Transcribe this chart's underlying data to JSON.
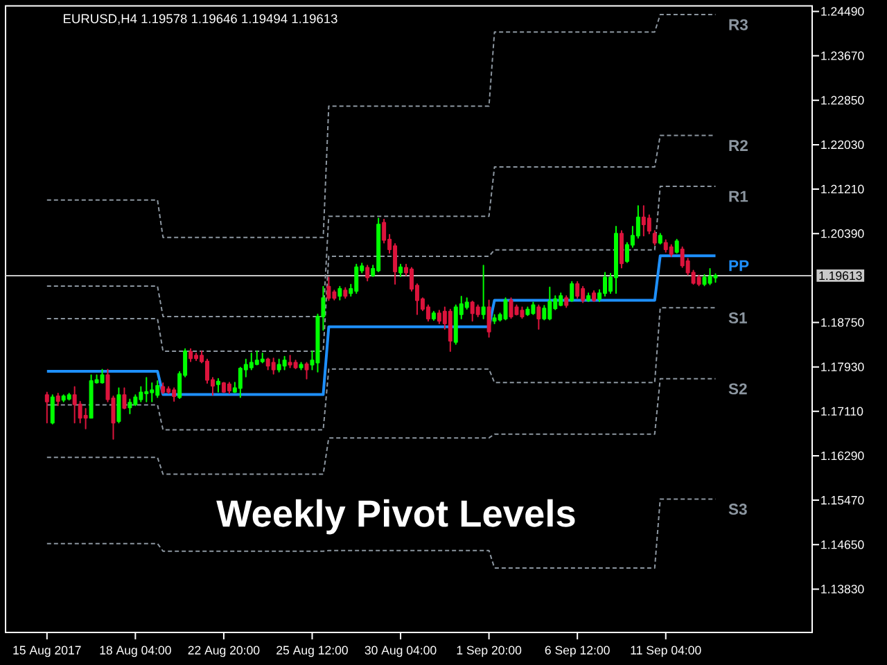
{
  "chart_data": {
    "type": "candlestick",
    "title": "EURUSD,H4 1.19578 1.19646 1.19494 1.19613",
    "annotations": [
      "Weekly Pivot Levels"
    ],
    "categories": [
      null,
      null,
      null,
      null,
      null,
      null,
      null,
      "15 Aug 2017",
      null,
      null,
      null,
      null,
      null,
      null,
      null,
      null,
      null,
      null,
      null,
      null,
      null,
      null,
      null,
      "18 Aug 04:00",
      null,
      null,
      null,
      null,
      null,
      null,
      null,
      null,
      null,
      null,
      null,
      null,
      null,
      null,
      null,
      "22 Aug 20:00",
      null,
      null,
      null,
      null,
      null,
      null,
      null,
      null,
      null,
      null,
      null,
      null,
      null,
      null,
      null,
      "25 Aug 12:00",
      null,
      null,
      null,
      null,
      null,
      null,
      null,
      null,
      null,
      null,
      null,
      null,
      null,
      null,
      null,
      "30 Aug 04:00",
      null,
      null,
      null,
      null,
      null,
      null,
      null,
      null,
      null,
      null,
      null,
      null,
      null,
      null,
      null,
      "1 Sep 20:00",
      null,
      null,
      null,
      null,
      null,
      null,
      null,
      null,
      null,
      null,
      null,
      null,
      null,
      null,
      null,
      "6 Sep 12:00",
      null,
      null,
      null,
      null,
      null,
      null,
      null,
      null,
      null,
      null,
      null,
      null,
      null,
      null,
      null,
      "11 Sep 04:00",
      null,
      null,
      null,
      null,
      null,
      null,
      null,
      null,
      null,
      null,
      null,
      null,
      null,
      null,
      null,
      null,
      null,
      null,
      null,
      null,
      null,
      null,
      null,
      null,
      null,
      null
    ],
    "ohlc": [
      null,
      null,
      null,
      null,
      null,
      null,
      null,
      [
        1.1741,
        1.1746,
        1.169,
        1.1729
      ],
      [
        1.169,
        1.1741,
        1.1688,
        1.1737
      ],
      [
        1.1739,
        1.1744,
        1.1722,
        1.173
      ],
      [
        1.1732,
        1.1741,
        1.1729,
        1.1739
      ],
      [
        1.1734,
        1.1744,
        1.1732,
        1.1741
      ],
      [
        1.1741,
        1.1756,
        1.169,
        1.1724
      ],
      [
        1.1724,
        1.1729,
        1.169,
        1.1699
      ],
      [
        1.1703,
        1.1716,
        1.1679,
        1.1699
      ],
      [
        1.1699,
        1.1778,
        1.1699,
        1.1767
      ],
      [
        1.1764,
        1.1778,
        1.1763,
        1.1769
      ],
      [
        1.1764,
        1.1788,
        1.1763,
        1.1778
      ],
      [
        1.1778,
        1.1788,
        1.1729,
        1.1733
      ],
      [
        1.1735,
        1.1739,
        1.166,
        1.169
      ],
      [
        1.1693,
        1.1754,
        1.169,
        1.1741
      ],
      [
        1.1741,
        1.1754,
        1.1716,
        1.1717
      ],
      [
        1.1718,
        1.1733,
        1.1707,
        1.1727
      ],
      [
        1.1724,
        1.1741,
        1.1722,
        1.1737
      ],
      [
        1.1733,
        1.1756,
        1.1729,
        1.1746
      ],
      [
        1.1744,
        1.1773,
        1.1729,
        1.1747
      ],
      [
        1.1746,
        1.1763,
        1.1729,
        1.175
      ],
      [
        1.1741,
        1.1767,
        1.1737,
        1.1758
      ],
      [
        1.1756,
        1.1763,
        1.1744,
        1.1747
      ],
      [
        1.1752,
        1.1756,
        1.1744,
        1.1747
      ],
      [
        1.175,
        1.1754,
        1.173,
        1.1739
      ],
      [
        1.1737,
        1.1784,
        1.1735,
        1.178
      ],
      [
        1.1778,
        1.1826,
        1.1775,
        1.1822
      ],
      [
        1.1821,
        1.1826,
        1.1803,
        1.1809
      ],
      [
        1.1814,
        1.1818,
        1.1805,
        1.1809
      ],
      [
        1.1814,
        1.1822,
        1.1801,
        1.1803
      ],
      [
        1.1803,
        1.1807,
        1.1763,
        1.1769
      ],
      [
        1.1769,
        1.1773,
        1.1741,
        1.1758
      ],
      [
        1.1761,
        1.1771,
        1.1747,
        1.1766
      ],
      [
        1.1763,
        1.1764,
        1.1746,
        1.1747
      ],
      [
        1.1761,
        1.1764,
        1.1744,
        1.1749
      ],
      [
        1.1747,
        1.1764,
        1.1746,
        1.1754
      ],
      [
        1.1754,
        1.1792,
        1.1737,
        1.179
      ],
      [
        1.1788,
        1.1807,
        1.1775,
        1.1797
      ],
      [
        1.1792,
        1.1818,
        1.1788,
        1.1801
      ],
      [
        1.1798,
        1.1822,
        1.1797,
        1.1805
      ],
      [
        1.1803,
        1.1818,
        1.1801,
        1.1807
      ],
      [
        1.1807,
        1.1809,
        1.1788,
        1.1795
      ],
      [
        1.1801,
        1.1809,
        1.178,
        1.1788
      ],
      [
        1.1788,
        1.1807,
        1.1784,
        1.1797
      ],
      [
        1.1795,
        1.1812,
        1.1788,
        1.1805
      ],
      [
        1.1801,
        1.1814,
        1.1792,
        1.1797
      ],
      [
        1.1801,
        1.1805,
        1.179,
        1.1792
      ],
      [
        1.1792,
        1.1801,
        1.1788,
        1.1797
      ],
      [
        1.1798,
        1.1801,
        1.1771,
        1.1788
      ],
      [
        1.1797,
        1.1822,
        1.1788,
        1.1805
      ],
      [
        1.1801,
        1.189,
        1.1784,
        1.1886
      ],
      [
        1.1886,
        1.1941,
        1.1861,
        1.192
      ],
      [
        1.1941,
        1.1958,
        1.1916,
        1.192
      ],
      [
        1.1931,
        1.1934,
        1.1917,
        1.192
      ],
      [
        1.1924,
        1.1941,
        1.1917,
        1.1937
      ],
      [
        1.1934,
        1.1939,
        1.192,
        1.1924
      ],
      [
        1.1929,
        1.1945,
        1.1924,
        1.1937
      ],
      [
        1.1933,
        1.1982,
        1.1929,
        1.1977
      ],
      [
        1.1971,
        1.1984,
        1.1967,
        1.1979
      ],
      [
        1.1976,
        1.198,
        1.1952,
        1.1958
      ],
      [
        1.1962,
        1.198,
        1.196,
        1.1974
      ],
      [
        1.1971,
        1.2067,
        1.1969,
        1.2056
      ],
      [
        1.2059,
        1.2065,
        1.2022,
        1.2027
      ],
      [
        1.2028,
        1.2037,
        1.2003,
        1.201
      ],
      [
        1.2016,
        1.202,
        1.1946,
        1.1969
      ],
      [
        1.1967,
        1.1982,
        1.196,
        1.1977
      ],
      [
        1.1976,
        1.1982,
        1.1962,
        1.1967
      ],
      [
        1.1973,
        1.1976,
        1.1933,
        1.1937
      ],
      [
        1.1943,
        1.1946,
        1.189,
        1.1916
      ],
      [
        1.1918,
        1.192,
        1.1897,
        1.19
      ],
      [
        1.1903,
        1.1907,
        1.1878,
        1.1882
      ],
      [
        1.1882,
        1.1895,
        1.1879,
        1.1892
      ],
      [
        1.1892,
        1.1897,
        1.1873,
        1.1878
      ],
      [
        1.1895,
        1.1903,
        1.1863,
        1.1873
      ],
      [
        1.1895,
        1.1899,
        1.1822,
        1.1841
      ],
      [
        1.1839,
        1.1907,
        1.1835,
        1.1903
      ],
      [
        1.189,
        1.1923,
        1.1882,
        1.1909
      ],
      [
        1.1903,
        1.192,
        1.19,
        1.1912
      ],
      [
        1.1912,
        1.1914,
        1.1878,
        1.1892
      ],
      [
        1.1903,
        1.1907,
        1.1886,
        1.189
      ],
      [
        1.189,
        1.198,
        1.1882,
        1.1903
      ],
      [
        1.1903,
        1.1916,
        1.1848,
        1.1858
      ],
      [
        1.1878,
        1.1889,
        1.1873,
        1.1883
      ],
      [
        1.188,
        1.1892,
        1.1878,
        1.1889
      ],
      [
        1.1882,
        1.192,
        1.188,
        1.1916
      ],
      [
        1.1916,
        1.192,
        1.1883,
        1.1886
      ],
      [
        1.1903,
        1.1907,
        1.1889,
        1.189
      ],
      [
        1.1897,
        1.1903,
        1.1883,
        1.1886
      ],
      [
        1.189,
        1.1903,
        1.1888,
        1.1899
      ],
      [
        1.1892,
        1.1912,
        1.189,
        1.1907
      ],
      [
        1.1903,
        1.1907,
        1.1863,
        1.1882
      ],
      [
        1.1882,
        1.1906,
        1.188,
        1.1901
      ],
      [
        1.1882,
        1.194,
        1.188,
        1.1914
      ],
      [
        1.1901,
        1.1924,
        1.1899,
        1.1918
      ],
      [
        1.1907,
        1.1929,
        1.1906,
        1.1924
      ],
      [
        1.192,
        1.1924,
        1.1903,
        1.1907
      ],
      [
        1.1916,
        1.195,
        1.1914,
        1.1946
      ],
      [
        1.1946,
        1.195,
        1.192,
        1.1924
      ],
      [
        1.1937,
        1.1941,
        1.1912,
        1.1916
      ],
      [
        1.1916,
        1.1929,
        1.1914,
        1.1924
      ],
      [
        1.1929,
        1.1933,
        1.1914,
        1.1916
      ],
      [
        1.1918,
        1.1935,
        1.1914,
        1.1929
      ],
      [
        1.1929,
        1.1967,
        1.1924,
        1.1958
      ],
      [
        1.1933,
        1.1965,
        1.1929,
        1.1958
      ],
      [
        1.1958,
        1.2052,
        1.1929,
        1.2039
      ],
      [
        1.2039,
        1.2044,
        1.1976,
        1.1984
      ],
      [
        1.1988,
        1.2022,
        1.1986,
        1.2018
      ],
      [
        1.2018,
        1.2052,
        1.2014,
        1.2035
      ],
      [
        1.2035,
        1.209,
        1.2031,
        1.2069
      ],
      [
        1.2069,
        1.209,
        1.2035,
        1.2056
      ],
      [
        1.2067,
        1.2073,
        1.2039,
        1.2044
      ],
      [
        1.2039,
        1.2044,
        1.2018,
        1.2022
      ],
      [
        1.2022,
        1.2039,
        1.202,
        1.2035
      ],
      [
        1.2022,
        1.2027,
        1.2005,
        1.201
      ],
      [
        1.2014,
        1.2018,
        1.1997,
        1.2001
      ],
      [
        1.2005,
        1.2028,
        1.2003,
        1.2025
      ],
      [
        1.201,
        1.2014,
        1.1977,
        1.198
      ],
      [
        1.1988,
        1.1993,
        1.1963,
        1.1967
      ],
      [
        1.1967,
        1.1971,
        1.1946,
        1.1948
      ],
      [
        1.1958,
        1.1962,
        1.1943,
        1.1946
      ],
      [
        1.1946,
        1.1963,
        1.1943,
        1.1958
      ],
      [
        1.1948,
        1.1974,
        1.1945,
        1.196
      ],
      [
        1.19578,
        1.19646,
        1.19494,
        1.19613
      ],
      null,
      null,
      null,
      null,
      null,
      null,
      null,
      null,
      null,
      null,
      null,
      null,
      null,
      null,
      null,
      null,
      null
    ],
    "colors": [
      null,
      null,
      null,
      null,
      null,
      null,
      null,
      "#dc143c",
      "#00ff00",
      "#dc143c",
      "#00ff00",
      "#00ff00",
      "#dc143c",
      "#dc143c",
      "#dc143c",
      "#00ff00",
      "#00ff00",
      "#00ff00",
      "#dc143c",
      "#dc143c",
      "#00ff00",
      "#dc143c",
      "#00ff00",
      "#00ff00",
      "#00ff00",
      "#00ff00",
      "#00ff00",
      "#00ff00",
      "#dc143c",
      "#dc143c",
      "#dc143c",
      "#00ff00",
      "#00ff00",
      "#dc143c",
      "#dc143c",
      "#dc143c",
      "#dc143c",
      "#dc143c",
      "#00ff00",
      "#dc143c",
      "#dc143c",
      "#00ff00",
      "#00ff00",
      "#00ff00",
      "#00ff00",
      "#00ff00",
      "#00ff00",
      "#dc143c",
      "#dc143c",
      "#00ff00",
      "#00ff00",
      "#dc143c",
      "#dc143c",
      "#00ff00",
      "#dc143c",
      "#00ff00",
      "#00ff00",
      "#00ff00",
      "#dc143c",
      "#dc143c",
      "#00ff00",
      "#dc143c",
      "#00ff00",
      "#00ff00",
      "#00ff00",
      "#dc143c",
      "#00ff00",
      "#00ff00",
      "#dc143c",
      "#dc143c",
      "#dc143c",
      "#00ff00",
      "#dc143c",
      "#dc143c",
      "#dc143c",
      "#dc143c",
      "#dc143c",
      "#00ff00",
      "#dc143c",
      "#dc143c",
      "#dc143c",
      "#00ff00",
      "#00ff00",
      "#00ff00",
      "#dc143c",
      "#dc143c",
      "#00ff00",
      "#dc143c",
      "#00ff00",
      "#00ff00",
      "#00ff00",
      "#dc143c",
      "#dc143c",
      "#dc143c",
      "#00ff00",
      "#00ff00",
      "#dc143c",
      "#00ff00",
      "#00ff00",
      "#00ff00",
      "#00ff00",
      "#dc143c",
      "#00ff00",
      "#dc143c",
      "#dc143c",
      "#00ff00",
      "#dc143c",
      "#00ff00",
      "#00ff00",
      "#00ff00",
      "#00ff00",
      "#dc143c",
      "#00ff00",
      "#00ff00",
      "#00ff00",
      "#dc143c",
      "#dc143c",
      "#dc143c",
      "#00ff00",
      "#dc143c",
      "#dc143c",
      "#00ff00",
      "#dc143c",
      "#dc143c",
      "#dc143c",
      "#dc143c",
      "#00ff00",
      "#00ff00",
      "#00ff00",
      null,
      null,
      null,
      null,
      null,
      null,
      null,
      null,
      null,
      null,
      null,
      null,
      null,
      null,
      null,
      null,
      null
    ],
    "series": [
      {
        "type": "line",
        "name": "R3",
        "color": "#8c96a0",
        "line_style": "dashed",
        "values": [
          null,
          null,
          null,
          null,
          null,
          null,
          null,
          1.2101,
          1.2101,
          1.2101,
          1.2101,
          1.2101,
          1.2101,
          1.2101,
          1.2101,
          1.2101,
          1.2101,
          1.2101,
          1.2101,
          1.2101,
          1.2101,
          1.2101,
          1.2101,
          1.2101,
          1.2101,
          1.2101,
          1.2101,
          1.2101,
          1.2032,
          1.2032,
          1.2032,
          1.2032,
          1.2032,
          1.2032,
          1.2032,
          1.2032,
          1.2032,
          1.2032,
          1.2032,
          1.2032,
          1.2032,
          1.2032,
          1.2032,
          1.2032,
          1.2032,
          1.2032,
          1.2032,
          1.2032,
          1.2032,
          1.2032,
          1.2032,
          1.2032,
          1.2032,
          1.2032,
          1.2032,
          1.2032,
          1.2032,
          1.2032,
          1.2274,
          1.2274,
          1.2274,
          1.2274,
          1.2274,
          1.2274,
          1.2274,
          1.2274,
          1.2274,
          1.2274,
          1.2274,
          1.2274,
          1.2274,
          1.2274,
          1.2274,
          1.2274,
          1.2274,
          1.2274,
          1.2274,
          1.2274,
          1.2274,
          1.2274,
          1.2274,
          1.2274,
          1.2274,
          1.2274,
          1.2274,
          1.2274,
          1.2274,
          1.2274,
          1.2411,
          1.2411,
          1.2411,
          1.2411,
          1.2411,
          1.2411,
          1.2411,
          1.2411,
          1.2411,
          1.2411,
          1.2411,
          1.2411,
          1.2411,
          1.2411,
          1.2411,
          1.2411,
          1.2411,
          1.2411,
          1.2411,
          1.2411,
          1.2411,
          1.2411,
          1.2411,
          1.2411,
          1.2411,
          1.2411,
          1.2411,
          1.2411,
          1.2411,
          1.2411,
          1.2443,
          1.2443,
          1.2443,
          1.2443,
          1.2443,
          1.2443,
          1.2443,
          1.2443,
          1.2443,
          1.2443,
          1.2443,
          null,
          null,
          null,
          null,
          null,
          null,
          null,
          null,
          null,
          null,
          null,
          null,
          null,
          null,
          null,
          null,
          null
        ]
      },
      {
        "type": "line",
        "name": "R2",
        "color": "#8c96a0",
        "line_style": "dashed",
        "values": [
          null,
          null,
          null,
          null,
          null,
          null,
          null,
          1.1942,
          1.1942,
          1.1942,
          1.1942,
          1.1942,
          1.1942,
          1.1942,
          1.1942,
          1.1942,
          1.1942,
          1.1942,
          1.1942,
          1.1942,
          1.1942,
          1.1942,
          1.1942,
          1.1942,
          1.1942,
          1.1942,
          1.1942,
          1.1942,
          1.1886,
          1.1886,
          1.1886,
          1.1886,
          1.1886,
          1.1886,
          1.1886,
          1.1886,
          1.1886,
          1.1886,
          1.1886,
          1.1886,
          1.1886,
          1.1886,
          1.1886,
          1.1886,
          1.1886,
          1.1886,
          1.1886,
          1.1886,
          1.1886,
          1.1886,
          1.1886,
          1.1886,
          1.1886,
          1.1886,
          1.1886,
          1.1886,
          1.1886,
          1.1886,
          1.2071,
          1.2071,
          1.2071,
          1.2071,
          1.2071,
          1.2071,
          1.2071,
          1.2071,
          1.2071,
          1.2071,
          1.2071,
          1.2071,
          1.2071,
          1.2071,
          1.2071,
          1.2071,
          1.2071,
          1.2071,
          1.2071,
          1.2071,
          1.2071,
          1.2071,
          1.2071,
          1.2071,
          1.2071,
          1.2071,
          1.2071,
          1.2071,
          1.2071,
          1.2071,
          1.2162,
          1.2162,
          1.2162,
          1.2162,
          1.2162,
          1.2162,
          1.2162,
          1.2162,
          1.2162,
          1.2162,
          1.2162,
          1.2162,
          1.2162,
          1.2162,
          1.2162,
          1.2162,
          1.2162,
          1.2162,
          1.2162,
          1.2162,
          1.2162,
          1.2162,
          1.2162,
          1.2162,
          1.2162,
          1.2162,
          1.2162,
          1.2162,
          1.2162,
          1.2162,
          1.222,
          1.222,
          1.222,
          1.222,
          1.222,
          1.222,
          1.222,
          1.222,
          1.222,
          1.222,
          1.222,
          null,
          null,
          null,
          null,
          null,
          null,
          null,
          null,
          null,
          null,
          null,
          null,
          null,
          null,
          null,
          null,
          null
        ]
      },
      {
        "type": "line",
        "name": "R1",
        "color": "#8c96a0",
        "line_style": "dashed",
        "values": [
          null,
          null,
          null,
          null,
          null,
          null,
          null,
          1.1882,
          1.1882,
          1.1882,
          1.1882,
          1.1882,
          1.1882,
          1.1882,
          1.1882,
          1.1882,
          1.1882,
          1.1882,
          1.1882,
          1.1882,
          1.1882,
          1.1882,
          1.1882,
          1.1882,
          1.1882,
          1.1882,
          1.1882,
          1.1882,
          1.1822,
          1.1822,
          1.1822,
          1.1822,
          1.1822,
          1.1822,
          1.1822,
          1.1822,
          1.1822,
          1.1822,
          1.1822,
          1.1822,
          1.1822,
          1.1822,
          1.1822,
          1.1822,
          1.1822,
          1.1822,
          1.1822,
          1.1822,
          1.1822,
          1.1822,
          1.1822,
          1.1822,
          1.1822,
          1.1822,
          1.1822,
          1.1822,
          1.1822,
          1.1822,
          1.1997,
          1.1997,
          1.1997,
          1.1997,
          1.1997,
          1.1997,
          1.1997,
          1.1997,
          1.1997,
          1.1997,
          1.1997,
          1.1997,
          1.1997,
          1.1997,
          1.1997,
          1.1997,
          1.1997,
          1.1997,
          1.1997,
          1.1997,
          1.1997,
          1.1997,
          1.1997,
          1.1997,
          1.1997,
          1.1997,
          1.1997,
          1.1997,
          1.1997,
          1.1997,
          1.2009,
          1.2009,
          1.2009,
          1.2009,
          1.2009,
          1.2009,
          1.2009,
          1.2009,
          1.2009,
          1.2009,
          1.2009,
          1.2009,
          1.2009,
          1.2009,
          1.2009,
          1.2009,
          1.2009,
          1.2009,
          1.2009,
          1.2009,
          1.2009,
          1.2009,
          1.2009,
          1.2009,
          1.2009,
          1.2009,
          1.2009,
          1.2009,
          1.2009,
          1.2009,
          1.2126,
          1.2126,
          1.2126,
          1.2126,
          1.2126,
          1.2126,
          1.2126,
          1.2126,
          1.2126,
          1.2126,
          1.2126,
          null,
          null,
          null,
          null,
          null,
          null,
          null,
          null,
          null,
          null,
          null,
          null,
          null,
          null,
          null,
          null,
          null
        ]
      },
      {
        "type": "line",
        "name": "PP",
        "color": "#1e90ff",
        "line_style": "solid",
        "values": [
          null,
          null,
          null,
          null,
          null,
          null,
          null,
          1.1785,
          1.1785,
          1.1785,
          1.1785,
          1.1785,
          1.1785,
          1.1785,
          1.1785,
          1.1785,
          1.1785,
          1.1785,
          1.1785,
          1.1785,
          1.1785,
          1.1785,
          1.1785,
          1.1785,
          1.1785,
          1.1785,
          1.1785,
          1.1785,
          1.1742,
          1.1742,
          1.1742,
          1.1742,
          1.1742,
          1.1742,
          1.1742,
          1.1742,
          1.1742,
          1.1742,
          1.1742,
          1.1742,
          1.1742,
          1.1742,
          1.1742,
          1.1742,
          1.1742,
          1.1742,
          1.1742,
          1.1742,
          1.1742,
          1.1742,
          1.1742,
          1.1742,
          1.1742,
          1.1742,
          1.1742,
          1.1742,
          1.1742,
          1.1742,
          1.1867,
          1.1867,
          1.1867,
          1.1867,
          1.1867,
          1.1867,
          1.1867,
          1.1867,
          1.1867,
          1.1867,
          1.1867,
          1.1867,
          1.1867,
          1.1867,
          1.1867,
          1.1867,
          1.1867,
          1.1867,
          1.1867,
          1.1867,
          1.1867,
          1.1867,
          1.1867,
          1.1867,
          1.1867,
          1.1867,
          1.1867,
          1.1867,
          1.1867,
          1.1867,
          1.1916,
          1.1916,
          1.1916,
          1.1916,
          1.1916,
          1.1916,
          1.1916,
          1.1916,
          1.1916,
          1.1916,
          1.1916,
          1.1916,
          1.1916,
          1.1916,
          1.1916,
          1.1916,
          1.1916,
          1.1916,
          1.1916,
          1.1916,
          1.1916,
          1.1916,
          1.1916,
          1.1916,
          1.1916,
          1.1916,
          1.1916,
          1.1916,
          1.1916,
          1.1916,
          1.1998,
          1.1998,
          1.1998,
          1.1998,
          1.1998,
          1.1998,
          1.1998,
          1.1998,
          1.1998,
          1.1998,
          1.1998,
          null,
          null,
          null,
          null,
          null,
          null,
          null,
          null,
          null,
          null,
          null,
          null,
          null,
          null,
          null,
          null,
          null
        ]
      },
      {
        "type": "line",
        "name": "S1",
        "color": "#8c96a0",
        "line_style": "dashed",
        "values": [
          null,
          null,
          null,
          null,
          null,
          null,
          null,
          1.1723,
          1.1723,
          1.1723,
          1.1723,
          1.1723,
          1.1723,
          1.1723,
          1.1723,
          1.1723,
          1.1723,
          1.1723,
          1.1723,
          1.1723,
          1.1723,
          1.1723,
          1.1723,
          1.1723,
          1.1723,
          1.1723,
          1.1723,
          1.1723,
          1.1677,
          1.1677,
          1.1677,
          1.1677,
          1.1677,
          1.1677,
          1.1677,
          1.1677,
          1.1677,
          1.1677,
          1.1677,
          1.1677,
          1.1677,
          1.1677,
          1.1677,
          1.1677,
          1.1677,
          1.1677,
          1.1677,
          1.1677,
          1.1677,
          1.1677,
          1.1677,
          1.1677,
          1.1677,
          1.1677,
          1.1677,
          1.1677,
          1.1677,
          1.1677,
          1.1789,
          1.1789,
          1.1789,
          1.1789,
          1.1789,
          1.1789,
          1.1789,
          1.1789,
          1.1789,
          1.1789,
          1.1789,
          1.1789,
          1.1789,
          1.1789,
          1.1789,
          1.1789,
          1.1789,
          1.1789,
          1.1789,
          1.1789,
          1.1789,
          1.1789,
          1.1789,
          1.1789,
          1.1789,
          1.1789,
          1.1789,
          1.1789,
          1.1789,
          1.1789,
          1.1764,
          1.1764,
          1.1764,
          1.1764,
          1.1764,
          1.1764,
          1.1764,
          1.1764,
          1.1764,
          1.1764,
          1.1764,
          1.1764,
          1.1764,
          1.1764,
          1.1764,
          1.1764,
          1.1764,
          1.1764,
          1.1764,
          1.1764,
          1.1764,
          1.1764,
          1.1764,
          1.1764,
          1.1764,
          1.1764,
          1.1764,
          1.1764,
          1.1764,
          1.1764,
          1.1902,
          1.1902,
          1.1902,
          1.1902,
          1.1902,
          1.1902,
          1.1902,
          1.1902,
          1.1902,
          1.1902,
          1.1902,
          null,
          null,
          null,
          null,
          null,
          null,
          null,
          null,
          null,
          null,
          null,
          null,
          null,
          null,
          null,
          null,
          null
        ]
      },
      {
        "type": "line",
        "name": "S2",
        "color": "#8c96a0",
        "line_style": "dashed",
        "values": [
          null,
          null,
          null,
          null,
          null,
          null,
          null,
          1.1626,
          1.1626,
          1.1626,
          1.1626,
          1.1626,
          1.1626,
          1.1626,
          1.1626,
          1.1626,
          1.1626,
          1.1626,
          1.1626,
          1.1626,
          1.1626,
          1.1626,
          1.1626,
          1.1626,
          1.1626,
          1.1626,
          1.1626,
          1.1626,
          1.1595,
          1.1595,
          1.1595,
          1.1595,
          1.1595,
          1.1595,
          1.1595,
          1.1595,
          1.1595,
          1.1595,
          1.1595,
          1.1595,
          1.1595,
          1.1595,
          1.1595,
          1.1595,
          1.1595,
          1.1595,
          1.1595,
          1.1595,
          1.1595,
          1.1595,
          1.1595,
          1.1595,
          1.1595,
          1.1595,
          1.1595,
          1.1595,
          1.1595,
          1.1595,
          1.1662,
          1.1662,
          1.1662,
          1.1662,
          1.1662,
          1.1662,
          1.1662,
          1.1662,
          1.1662,
          1.1662,
          1.1662,
          1.1662,
          1.1662,
          1.1662,
          1.1662,
          1.1662,
          1.1662,
          1.1662,
          1.1662,
          1.1662,
          1.1662,
          1.1662,
          1.1662,
          1.1662,
          1.1662,
          1.1662,
          1.1662,
          1.1662,
          1.1662,
          1.1662,
          1.1669,
          1.1669,
          1.1669,
          1.1669,
          1.1669,
          1.1669,
          1.1669,
          1.1669,
          1.1669,
          1.1669,
          1.1669,
          1.1669,
          1.1669,
          1.1669,
          1.1669,
          1.1669,
          1.1669,
          1.1669,
          1.1669,
          1.1669,
          1.1669,
          1.1669,
          1.1669,
          1.1669,
          1.1669,
          1.1669,
          1.1669,
          1.1669,
          1.1669,
          1.1669,
          1.1771,
          1.1771,
          1.1771,
          1.1771,
          1.1771,
          1.1771,
          1.1771,
          1.1771,
          1.1771,
          1.1771,
          1.1771,
          null,
          null,
          null,
          null,
          null,
          null,
          null,
          null,
          null,
          null,
          null,
          null,
          null,
          null,
          null,
          null,
          null
        ]
      },
      {
        "type": "line",
        "name": "S3",
        "color": "#8c96a0",
        "line_style": "dashed",
        "values": [
          null,
          null,
          null,
          null,
          null,
          null,
          null,
          1.1467,
          1.1467,
          1.1467,
          1.1467,
          1.1467,
          1.1467,
          1.1467,
          1.1467,
          1.1467,
          1.1467,
          1.1467,
          1.1467,
          1.1467,
          1.1467,
          1.1467,
          1.1467,
          1.1467,
          1.1467,
          1.1467,
          1.1467,
          1.1467,
          1.1453,
          1.1453,
          1.1453,
          1.1453,
          1.1453,
          1.1453,
          1.1453,
          1.1453,
          1.1453,
          1.1453,
          1.1453,
          1.1453,
          1.1453,
          1.1453,
          1.1453,
          1.1453,
          1.1453,
          1.1453,
          1.1453,
          1.1453,
          1.1453,
          1.1453,
          1.1453,
          1.1453,
          1.1453,
          1.1453,
          1.1453,
          1.1453,
          1.1453,
          1.1453,
          1.1454,
          1.1454,
          1.1454,
          1.1454,
          1.1454,
          1.1454,
          1.1454,
          1.1454,
          1.1454,
          1.1454,
          1.1454,
          1.1454,
          1.1454,
          1.1454,
          1.1454,
          1.1454,
          1.1454,
          1.1454,
          1.1454,
          1.1454,
          1.1454,
          1.1454,
          1.1454,
          1.1454,
          1.1454,
          1.1454,
          1.1454,
          1.1454,
          1.1454,
          1.1454,
          1.1422,
          1.1422,
          1.1422,
          1.1422,
          1.1422,
          1.1422,
          1.1422,
          1.1422,
          1.1422,
          1.1422,
          1.1422,
          1.1422,
          1.1422,
          1.1422,
          1.1422,
          1.1422,
          1.1422,
          1.1422,
          1.1422,
          1.1422,
          1.1422,
          1.1422,
          1.1422,
          1.1422,
          1.1422,
          1.1422,
          1.1422,
          1.1422,
          1.1422,
          1.1422,
          1.1549,
          1.1549,
          1.1549,
          1.1549,
          1.1549,
          1.1549,
          1.1549,
          1.1549,
          1.1549,
          1.1549,
          1.1549,
          null,
          null,
          null,
          null,
          null,
          null,
          null,
          null,
          null,
          null,
          null,
          null,
          null,
          null,
          null,
          null,
          null
        ]
      }
    ],
    "ylim": [
      1.1303,
      1.2459
    ],
    "yticks": [
      {
        "value": 1.2449,
        "label": "1.24490"
      },
      {
        "value": 1.2367,
        "label": "1.23670"
      },
      {
        "value": 1.2285,
        "label": "1.22850"
      },
      {
        "value": 1.2203,
        "label": "1.22030"
      },
      {
        "value": 1.2121,
        "label": "1.21210"
      },
      {
        "value": 1.2039,
        "label": "1.20390"
      },
      {
        "value": 1.1875,
        "label": "1.18750"
      },
      {
        "value": 1.1793,
        "label": "1.17930"
      },
      {
        "value": 1.1711,
        "label": "1.17110"
      },
      {
        "value": 1.1629,
        "label": "1.16290"
      },
      {
        "value": 1.1547,
        "label": "1.15470"
      },
      {
        "value": 1.1465,
        "label": "1.14650"
      },
      {
        "value": 1.1383,
        "label": "1.13830"
      }
    ],
    "ref_lines": [
      {
        "axis": "y",
        "value": 1.19613,
        "label": "1.19613",
        "color": "#c8c8c8"
      }
    ]
  }
}
